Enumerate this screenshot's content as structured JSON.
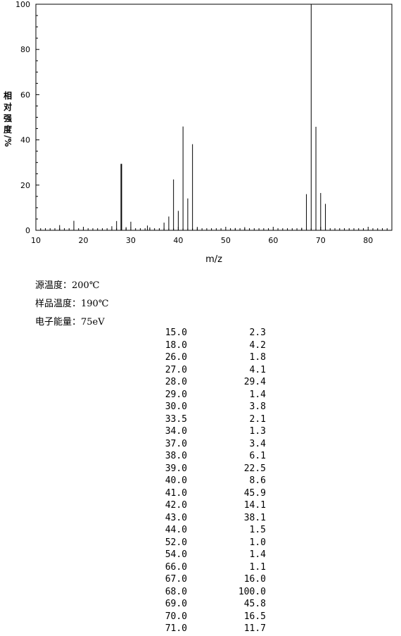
{
  "chart_data": {
    "type": "bar",
    "xlabel": "m/z",
    "ylabel": "相对强度/%",
    "ylabel_chars": [
      "相",
      "对",
      "强",
      "度"
    ],
    "ylabel_unit": "/%",
    "xlim": [
      10,
      85
    ],
    "ylim": [
      0,
      100
    ],
    "xticks": [
      10,
      20,
      30,
      40,
      50,
      60,
      70,
      80
    ],
    "yticks": [
      0,
      20,
      40,
      60,
      80,
      100
    ],
    "grid": false,
    "peaks": [
      {
        "mz": 15.0,
        "intensity": 2.3
      },
      {
        "mz": 18.0,
        "intensity": 4.2
      },
      {
        "mz": 26.0,
        "intensity": 1.8
      },
      {
        "mz": 27.0,
        "intensity": 4.1
      },
      {
        "mz": 28.0,
        "intensity": 29.4
      },
      {
        "mz": 29.0,
        "intensity": 1.4
      },
      {
        "mz": 30.0,
        "intensity": 3.8
      },
      {
        "mz": 33.5,
        "intensity": 2.1
      },
      {
        "mz": 34.0,
        "intensity": 1.3
      },
      {
        "mz": 37.0,
        "intensity": 3.4
      },
      {
        "mz": 38.0,
        "intensity": 6.1
      },
      {
        "mz": 39.0,
        "intensity": 22.5
      },
      {
        "mz": 40.0,
        "intensity": 8.6
      },
      {
        "mz": 41.0,
        "intensity": 45.9
      },
      {
        "mz": 42.0,
        "intensity": 14.1
      },
      {
        "mz": 43.0,
        "intensity": 38.1
      },
      {
        "mz": 44.0,
        "intensity": 1.5
      },
      {
        "mz": 52.0,
        "intensity": 1.0
      },
      {
        "mz": 54.0,
        "intensity": 1.4
      },
      {
        "mz": 66.0,
        "intensity": 1.1
      },
      {
        "mz": 67.0,
        "intensity": 16.0
      },
      {
        "mz": 68.0,
        "intensity": 100.0
      },
      {
        "mz": 69.0,
        "intensity": 45.8
      },
      {
        "mz": 70.0,
        "intensity": 16.5
      },
      {
        "mz": 71.0,
        "intensity": 11.7
      }
    ]
  },
  "conditions": [
    "源温度：200℃",
    "样品温度：190℃",
    "电子能量：75eV"
  ],
  "peak_table": [
    [
      "15.0",
      "2.3"
    ],
    [
      "18.0",
      "4.2"
    ],
    [
      "26.0",
      "1.8"
    ],
    [
      "27.0",
      "4.1"
    ],
    [
      "28.0",
      "29.4"
    ],
    [
      "29.0",
      "1.4"
    ],
    [
      "30.0",
      "3.8"
    ],
    [
      "33.5",
      "2.1"
    ],
    [
      "34.0",
      "1.3"
    ],
    [
      "37.0",
      "3.4"
    ],
    [
      "38.0",
      "6.1"
    ],
    [
      "39.0",
      "22.5"
    ],
    [
      "40.0",
      "8.6"
    ],
    [
      "41.0",
      "45.9"
    ],
    [
      "42.0",
      "14.1"
    ],
    [
      "43.0",
      "38.1"
    ],
    [
      "44.0",
      "1.5"
    ],
    [
      "52.0",
      "1.0"
    ],
    [
      "54.0",
      "1.4"
    ],
    [
      "66.0",
      "1.1"
    ],
    [
      "67.0",
      "16.0"
    ],
    [
      "68.0",
      "100.0"
    ],
    [
      "69.0",
      "45.8"
    ],
    [
      "70.0",
      "16.5"
    ],
    [
      "71.0",
      "11.7"
    ]
  ]
}
